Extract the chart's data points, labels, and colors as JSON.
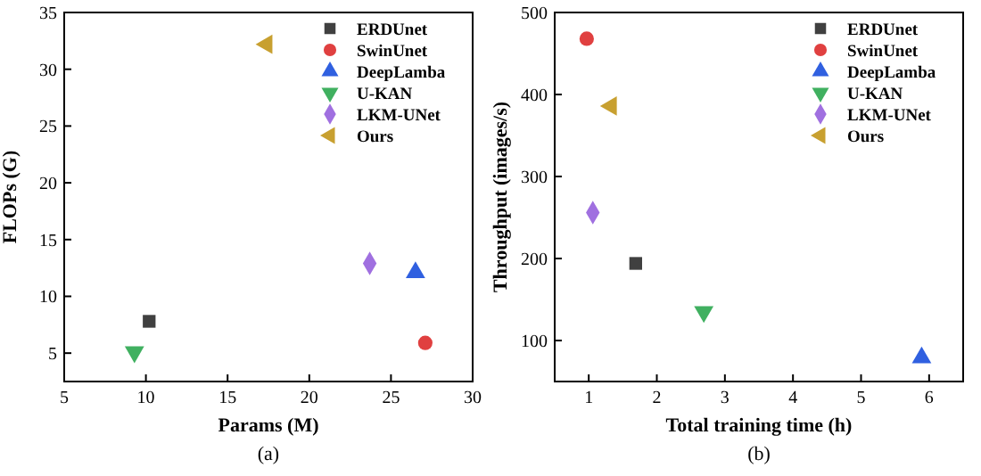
{
  "chart_data": [
    {
      "type": "scatter",
      "xlabel": "Params (M)",
      "ylabel": "FLOPs (G)",
      "xlim": [
        5,
        30
      ],
      "xticks": [
        5,
        10,
        15,
        20,
        25,
        30
      ],
      "ylim": [
        2.5,
        35
      ],
      "yticks": [
        5,
        10,
        15,
        20,
        25,
        30,
        35
      ],
      "legend": "top right",
      "grid": false,
      "annotations": [
        "(a)"
      ],
      "series": [
        {
          "name": "ERDUnet",
          "color": "#404040",
          "marker": "square",
          "x": [
            10.2
          ],
          "values": [
            7.8
          ]
        },
        {
          "name": "SwinUnet",
          "color": "#e04040",
          "marker": "circle",
          "x": [
            27.1
          ],
          "values": [
            5.9
          ]
        },
        {
          "name": "DeepLamba",
          "color": "#3060e0",
          "marker": "triangle",
          "x": [
            26.5
          ],
          "values": [
            12.1
          ]
        },
        {
          "name": "U-KAN",
          "color": "#40b060",
          "marker": "triangle-down",
          "x": [
            9.3
          ],
          "values": [
            5.1
          ]
        },
        {
          "name": "LKM-UNet",
          "color": "#a070e0",
          "marker": "diamond",
          "x": [
            23.7
          ],
          "values": [
            12.9
          ]
        },
        {
          "name": "Ours",
          "color": "#c8a030",
          "marker": "triangle-left",
          "x": [
            17.4
          ],
          "values": [
            32.2
          ]
        }
      ]
    },
    {
      "type": "scatter",
      "xlabel": "Total training time (h)",
      "ylabel": "Throughput (images/s)",
      "xlim": [
        0.5,
        6.5
      ],
      "xticks": [
        1,
        2,
        3,
        4,
        5,
        6
      ],
      "ylim": [
        50,
        500
      ],
      "yticks": [
        100,
        200,
        300,
        400,
        500
      ],
      "legend": "top right",
      "grid": false,
      "annotations": [
        "(b)"
      ],
      "series": [
        {
          "name": "ERDUnet",
          "color": "#404040",
          "marker": "square",
          "x": [
            1.69
          ],
          "values": [
            194
          ]
        },
        {
          "name": "SwinUnet",
          "color": "#e04040",
          "marker": "circle",
          "x": [
            0.97
          ],
          "values": [
            468
          ]
        },
        {
          "name": "DeepLamba",
          "color": "#3060e0",
          "marker": "triangle",
          "x": [
            5.89
          ],
          "values": [
            79
          ]
        },
        {
          "name": "U-KAN",
          "color": "#40b060",
          "marker": "triangle-down",
          "x": [
            2.69
          ],
          "values": [
            135
          ]
        },
        {
          "name": "LKM-UNet",
          "color": "#a070e0",
          "marker": "diamond",
          "x": [
            1.06
          ],
          "values": [
            256
          ]
        },
        {
          "name": "Ours",
          "color": "#c8a030",
          "marker": "triangle-left",
          "x": [
            1.33
          ],
          "values": [
            386
          ]
        }
      ]
    }
  ]
}
